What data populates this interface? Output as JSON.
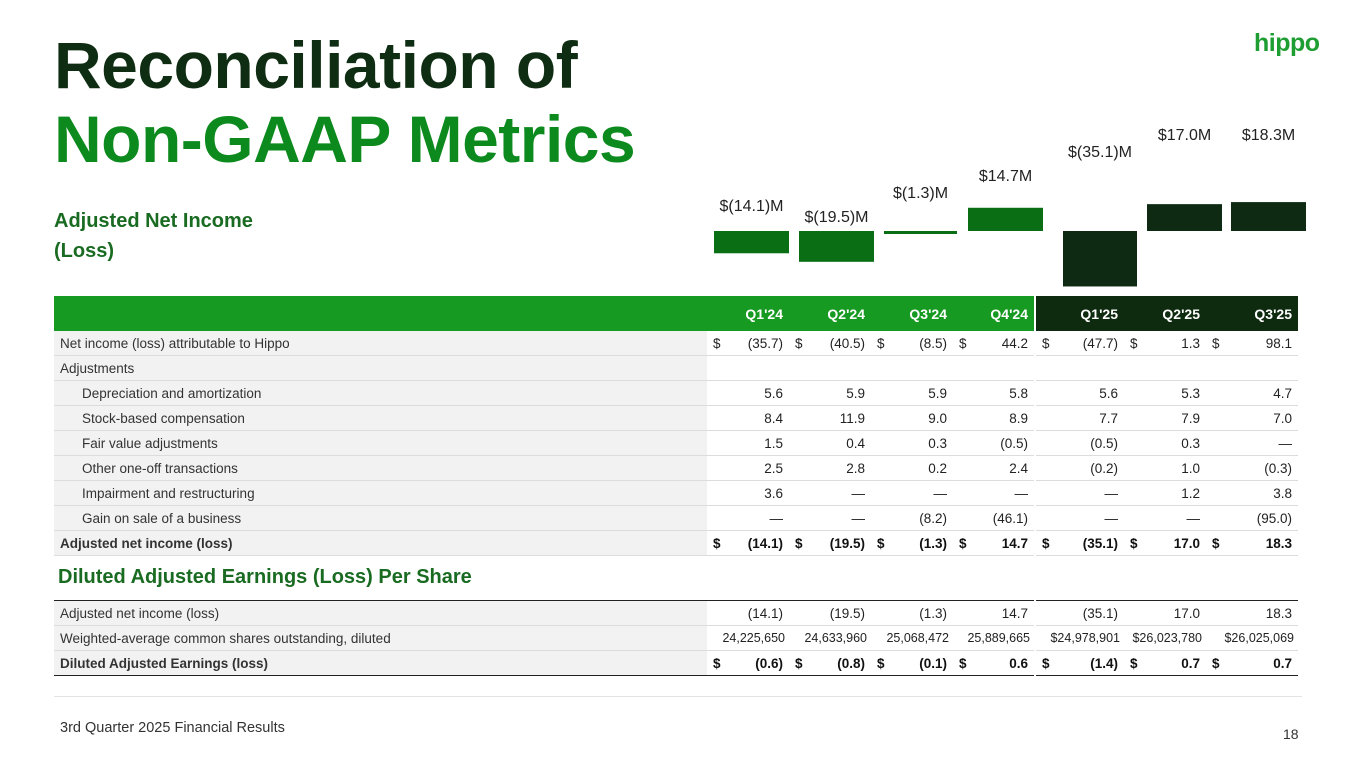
{
  "brand": {
    "logo_text": "hippo",
    "title_line1": "Reconciliation of",
    "title_line2": "Non-GAAP Metrics"
  },
  "section1_title": "Adjusted Net Income (Loss)",
  "chart_data": {
    "type": "bar",
    "title": "Adjusted Net Income (Loss)",
    "categories": [
      "Q1'24",
      "Q2'24",
      "Q3'24",
      "Q4'24",
      "Q1'25",
      "Q2'25",
      "Q3'25"
    ],
    "values": [
      -14.1,
      -19.5,
      -1.3,
      14.7,
      -35.1,
      17.0,
      18.3
    ],
    "labels": [
      "$(14.1)M",
      "$(19.5)M",
      "$(1.3)M",
      "$14.7M",
      "$(35.1)M",
      "$17.0M",
      "$18.3M"
    ],
    "colors": [
      "#0a6f14",
      "#0a6f14",
      "#0a6f14",
      "#0a6f14",
      "#0f2a12",
      "#0f2a12",
      "#0f2a12"
    ],
    "unit": "$M",
    "ylim": [
      -35.1,
      18.3
    ]
  },
  "table1": {
    "headers": [
      "Q1'24",
      "Q2'24",
      "Q3'24",
      "Q4'24",
      "Q1'25",
      "Q2'25",
      "Q3'25"
    ],
    "rows": {
      "net_income": {
        "label": "Net income (loss) attributable to Hippo",
        "currency": "$",
        "values": [
          "(35.7)",
          "(40.5)",
          "(8.5)",
          "44.2",
          "(47.7)",
          "1.3",
          "98.1"
        ]
      },
      "adjustments": {
        "label": "Adjustments"
      },
      "dep": {
        "label": "Depreciation and amortization",
        "values": [
          "5.6",
          "5.9",
          "5.9",
          "5.8",
          "5.6",
          "5.3",
          "4.7"
        ]
      },
      "sbc": {
        "label": "Stock-based compensation",
        "values": [
          "8.4",
          "11.9",
          "9.0",
          "8.9",
          "7.7",
          "7.9",
          "7.0"
        ]
      },
      "fva": {
        "label": "Fair value adjustments",
        "values": [
          "1.5",
          "0.4",
          "0.3",
          "(0.5)",
          "(0.5)",
          "0.3",
          "—"
        ]
      },
      "oth": {
        "label": "Other one-off transactions",
        "values": [
          "2.5",
          "2.8",
          "0.2",
          "2.4",
          "(0.2)",
          "1.0",
          "(0.3)"
        ]
      },
      "imp": {
        "label": "Impairment and restructuring",
        "values": [
          "3.6",
          "—",
          "—",
          "—",
          "—",
          "1.2",
          "3.8"
        ]
      },
      "gain": {
        "label": "Gain on sale of a business",
        "values": [
          "—",
          "—",
          "(8.2)",
          "(46.1)",
          "—",
          "—",
          "(95.0)"
        ]
      },
      "adj": {
        "label": "Adjusted net income (loss)",
        "currency": "$",
        "values": [
          "(14.1)",
          "(19.5)",
          "(1.3)",
          "14.7",
          "(35.1)",
          "17.0",
          "18.3"
        ]
      }
    }
  },
  "section2_title": "Diluted Adjusted Earnings (Loss) Per Share",
  "table2": {
    "rows": {
      "adj": {
        "label": "Adjusted net income (loss)",
        "values": [
          "(14.1)",
          "(19.5)",
          "(1.3)",
          "14.7",
          "(35.1)",
          "17.0",
          "18.3"
        ]
      },
      "shares": {
        "label": "Weighted-average common shares outstanding, diluted",
        "values": [
          "24,225,650",
          "24,633,960",
          "25,068,472",
          "25,889,665",
          "$24,978,901",
          "$26,023,780",
          "$26,025,069"
        ]
      },
      "eps": {
        "label": "Diluted Adjusted Earnings (loss)",
        "currency": "$",
        "values": [
          "(0.6)",
          "(0.8)",
          "(0.1)",
          "0.6",
          "(1.4)",
          "0.7",
          "0.7"
        ]
      }
    }
  },
  "footer": {
    "text": "3rd Quarter 2025 Financial Results",
    "page": "18"
  }
}
